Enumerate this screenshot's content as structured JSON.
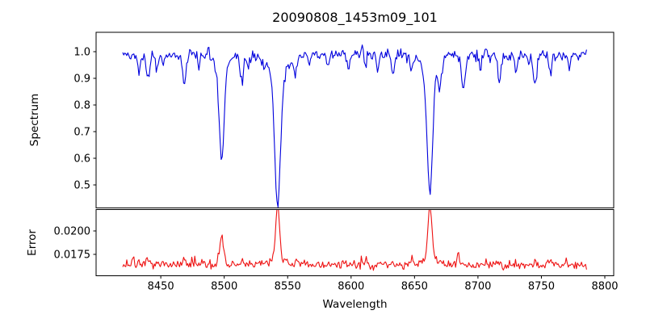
{
  "figure": {
    "title": "20090808_1453m09_101"
  },
  "chart_data": {
    "type": "line",
    "title": "20090808_1453m09_101",
    "xlabel": "Wavelength",
    "xlim": [
      8399,
      8807
    ],
    "x_data_range": [
      8420,
      8786
    ],
    "x_ticks": [
      8450,
      8500,
      8550,
      8600,
      8650,
      8700,
      8750,
      8800
    ],
    "x_tick_labels": [
      "8450",
      "8500",
      "8550",
      "8600",
      "8650",
      "8700",
      "8750",
      "8800"
    ],
    "grid": false,
    "legend": "none",
    "panels": [
      {
        "name": "spectrum",
        "ylabel": "Spectrum",
        "line_color": "#0000dd",
        "ylim": [
          0.4136,
          1.0727
        ],
        "y_ticks": [
          1.0,
          0.9,
          0.8,
          0.7,
          0.6,
          0.5
        ],
        "y_tick_labels": [
          "1.0",
          "0.9",
          "0.8",
          "0.7",
          "0.6",
          "0.5"
        ],
        "continuum_level": 0.99,
        "noise_sigma": 0.009,
        "absorption_lines_format": "[center_wavelength, depth, sigma, wing_depth?, wing_sigma?]",
        "absorption_lines": [
          [
            8498.0,
            0.355,
            1.9,
            0.05,
            6
          ],
          [
            8542.1,
            0.5,
            2.3,
            0.065,
            8
          ],
          [
            8662.1,
            0.455,
            2.2,
            0.06,
            7
          ],
          [
            8433.0,
            0.065,
            1.1
          ],
          [
            8440.0,
            0.095,
            1.4
          ],
          [
            8447.0,
            0.055,
            1.0
          ],
          [
            8452.0,
            0.04,
            0.9
          ],
          [
            8468.5,
            0.115,
            1.4
          ],
          [
            8480.0,
            0.04,
            0.9
          ],
          [
            8514.0,
            0.1,
            1.3
          ],
          [
            8519.0,
            0.05,
            0.9
          ],
          [
            8556.0,
            0.07,
            1.2
          ],
          [
            8567.0,
            0.04,
            0.9
          ],
          [
            8582.0,
            0.05,
            1.1
          ],
          [
            8598.0,
            0.045,
            1.0
          ],
          [
            8611.0,
            0.04,
            0.9
          ],
          [
            8621.0,
            0.05,
            1.0
          ],
          [
            8633.0,
            0.075,
            1.2
          ],
          [
            8648.0,
            0.05,
            1.0
          ],
          [
            8670.0,
            0.095,
            1.2
          ],
          [
            8688.5,
            0.13,
            1.5
          ],
          [
            8702.0,
            0.05,
            1.0
          ],
          [
            8717.0,
            0.105,
            1.3
          ],
          [
            8730.0,
            0.06,
            1.0
          ],
          [
            8745.0,
            0.115,
            1.4
          ],
          [
            8757.0,
            0.075,
            1.1
          ],
          [
            8772.0,
            0.055,
            1.0
          ]
        ],
        "emission_spikes_format": "[center_wavelength, amplitude, sigma]",
        "emission_spikes": [
          [
            8487.3,
            0.055,
            0.7
          ],
          [
            8609.0,
            0.035,
            0.6
          ]
        ],
        "main_line_minima": {
          "8498": 0.585,
          "8542": 0.44,
          "8662": 0.49
        }
      },
      {
        "name": "error",
        "ylabel": "Error",
        "line_color": "#ee1111",
        "ylim": [
          0.015216,
          0.022284
        ],
        "y_ticks": [
          0.02,
          0.0175
        ],
        "y_tick_labels": [
          "0.0200",
          "0.0175"
        ],
        "baseline_level": 0.01635,
        "noise_sigma": 0.00022,
        "peaks_format": "[center_wavelength, amplitude, sigma, wing_amp?, wing_sigma?]",
        "peaks": [
          [
            8498.0,
            0.00325,
            1.5
          ],
          [
            8542.1,
            0.0057,
            1.6,
            0.0007,
            4.5
          ],
          [
            8662.1,
            0.0057,
            1.6,
            0.0007,
            4.5
          ],
          [
            8684.5,
            0.0012,
            0.8
          ],
          [
            8428.0,
            0.0006,
            1.0
          ],
          [
            8433.0,
            0.0005,
            0.9
          ],
          [
            8440.0,
            0.0005,
            1.0
          ],
          [
            8455.0,
            0.0003,
            0.9
          ],
          [
            8468.5,
            0.0005,
            1.0
          ],
          [
            8482.0,
            0.0003,
            0.8
          ],
          [
            8514.0,
            0.0005,
            0.9
          ],
          [
            8520.0,
            0.0004,
            0.8
          ],
          [
            8533.0,
            0.0005,
            0.9
          ],
          [
            8556.0,
            0.0004,
            0.9
          ],
          [
            8574.0,
            0.0003,
            0.8
          ],
          [
            8598.0,
            0.0003,
            0.8
          ],
          [
            8610.0,
            0.0004,
            0.8
          ],
          [
            8633.0,
            0.0004,
            0.9
          ],
          [
            8648.0,
            0.0003,
            0.8
          ],
          [
            8670.0,
            0.0004,
            0.9
          ],
          [
            8702.0,
            0.0003,
            0.8
          ],
          [
            8717.0,
            0.0004,
            0.9
          ],
          [
            8730.0,
            0.0004,
            0.8
          ],
          [
            8745.0,
            0.0005,
            0.9
          ],
          [
            8757.0,
            0.0004,
            0.8
          ],
          [
            8770.0,
            0.0004,
            0.8
          ]
        ],
        "peak_maxima": {
          "8498": 0.0196,
          "8542": 0.0222,
          "8662": 0.0222
        }
      }
    ]
  }
}
